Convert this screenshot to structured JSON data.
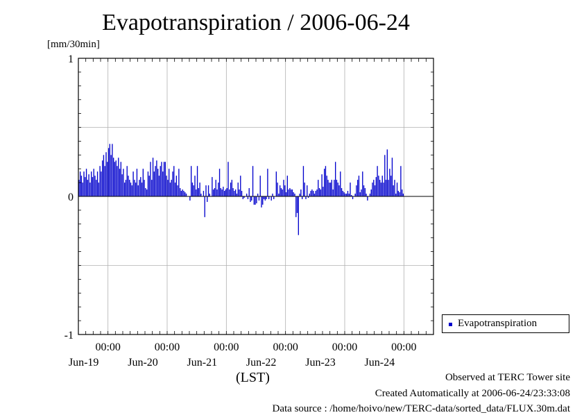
{
  "chart_data": {
    "type": "bar",
    "title": "Evapotranspiration / 2006-06-24",
    "ylabel": "[mm/30min]",
    "xlabel": "(LST)",
    "ylim": [
      -1,
      1
    ],
    "yticks": [
      {
        "value": 1,
        "label": "1"
      },
      {
        "value": 0,
        "label": "0"
      },
      {
        "value": -1,
        "label": "-1"
      }
    ],
    "xlim_days": [
      18.5,
      24.5
    ],
    "xticks": [
      {
        "day": 19,
        "time_label": "00:00",
        "date_label": "Jun-19"
      },
      {
        "day": 20,
        "time_label": "00:00",
        "date_label": "Jun-20"
      },
      {
        "day": 21,
        "time_label": "00:00",
        "date_label": "Jun-21"
      },
      {
        "day": 22,
        "time_label": "00:00",
        "date_label": "Jun-22"
      },
      {
        "day": 23,
        "time_label": "00:00",
        "date_label": "Jun-23"
      },
      {
        "day": 24,
        "time_label": "00:00",
        "date_label": "Jun-24"
      }
    ],
    "grid": true,
    "legend_position": "right",
    "series": [
      {
        "name": "Evapotranspiration",
        "color": "#0000cc",
        "start": "2006-06-18 12:00",
        "interval": "30min",
        "values": [
          0.12,
          0.18,
          0.15,
          0.1,
          0.18,
          0.14,
          0.2,
          0.12,
          0.16,
          0.1,
          0.18,
          0.14,
          0.2,
          0.15,
          0.12,
          0.18,
          0.1,
          0.22,
          0.18,
          0.26,
          0.3,
          0.22,
          0.32,
          0.25,
          0.35,
          0.38,
          0.3,
          0.38,
          0.28,
          0.25,
          0.26,
          0.22,
          0.28,
          0.2,
          0.25,
          0.16,
          0.2,
          0.1,
          0.12,
          0.22,
          0.15,
          0.12,
          0.1,
          0.08,
          0.18,
          0.12,
          0.1,
          0.2,
          0.08,
          0.12,
          0.14,
          0.1,
          0.2,
          0.12,
          0.06,
          0.05,
          0.18,
          0.15,
          0.25,
          0.12,
          0.28,
          0.18,
          0.22,
          0.26,
          0.2,
          0.15,
          0.22,
          0.25,
          0.18,
          0.25,
          0.25,
          0.15,
          0.12,
          0.2,
          0.1,
          0.12,
          0.18,
          0.22,
          0.1,
          0.15,
          0.08,
          0.2,
          0.06,
          0.04,
          0.05,
          0.04,
          0.03,
          0.02,
          0,
          0,
          -0.03,
          0.22,
          0.1,
          0.08,
          0.15,
          0.05,
          0.22,
          0.06,
          0.1,
          0.02,
          0,
          0.04,
          -0.15,
          0.08,
          -0.04,
          0.08,
          0.02,
          0,
          0.14,
          0.05,
          0.06,
          0.12,
          0.05,
          0.1,
          0.2,
          0.06,
          0.05,
          0.07,
          0.04,
          0.05,
          0.06,
          0.25,
          0.05,
          0.1,
          0.12,
          0.06,
          0.04,
          0.05,
          0.02,
          0.1,
          0.05,
          0.15,
          0.04,
          -0.02,
          -0.01,
          0,
          0.02,
          -0.02,
          0.06,
          -0.04,
          -0.03,
          0.22,
          -0.06,
          -0.06,
          -0.05,
          0.02,
          -0.03,
          0.15,
          -0.08,
          -0.06,
          -0.02,
          -0.03,
          -0.02,
          0.2,
          -0.02,
          0,
          -0.03,
          0.02,
          -0.02,
          0,
          0.18,
          0.1,
          0.02,
          0.08,
          0.06,
          0.05,
          0.12,
          0.08,
          0.03,
          0.15,
          0.05,
          0.06,
          0.05,
          0.05,
          0.03,
          0.02,
          -0.15,
          -0.12,
          -0.28,
          0.02,
          0.05,
          -0.02,
          0.22,
          0.1,
          -0.02,
          0.08,
          -0.01,
          0.02,
          0.04,
          0.05,
          0.04,
          0.02,
          0.04,
          0.05,
          0.12,
          0.06,
          0.05,
          0.16,
          0.07,
          0.2,
          0.22,
          0.15,
          0.12,
          0.1,
          0.1,
          0.12,
          0.05,
          0.12,
          0.25,
          0.12,
          0.1,
          0.08,
          0.18,
          0.06,
          0.04,
          0.03,
          0.02,
          0.02,
          0.04,
          0.02,
          0.1,
          0.01,
          -0.02,
          0,
          0.02,
          0.08,
          0.12,
          0.15,
          0.03,
          0.05,
          0.18,
          0.08,
          0.06,
          0.02,
          -0.03,
          0,
          0.02,
          0.05,
          0.1,
          0.12,
          0.08,
          0.14,
          0.22,
          0.15,
          0.12,
          0.1,
          0.15,
          0.1,
          0.3,
          0.12,
          0.34,
          0.12,
          0.2,
          0.15,
          0.28,
          0.08,
          0.12,
          0.02,
          0.1,
          0.04,
          0.03,
          0.22,
          0.05,
          0.02
        ]
      }
    ]
  },
  "footer": {
    "line1": "Observed at TERC Tower site",
    "line2": "Created Automatically at 2006-06-24/23:33:08",
    "line3": "Data source : /home/hoivo/new/TERC-data/sorted_data/FLUX.30m.dat"
  }
}
